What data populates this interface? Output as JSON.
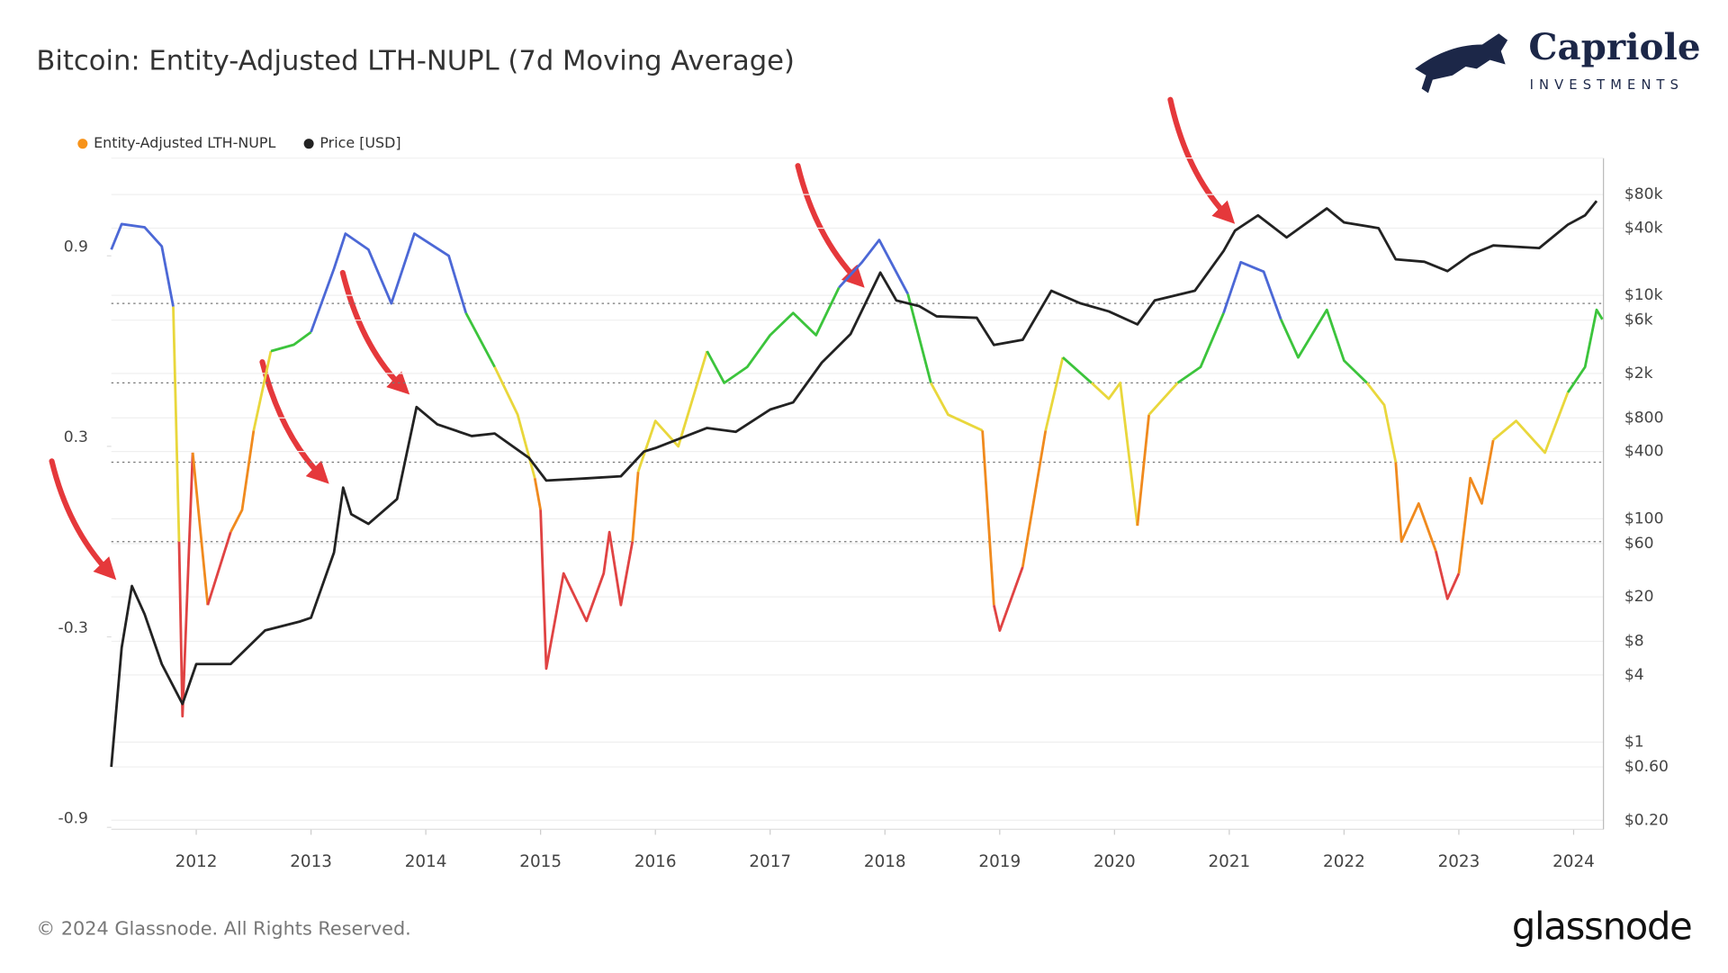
{
  "chart_data": {
    "type": "line",
    "title": "Bitcoin: Entity-Adjusted LTH-NUPL (7d Moving Average)",
    "brand": {
      "name": "Capriole",
      "tagline": "INVESTMENTS"
    },
    "footer": {
      "copyright": "© 2024 Glassnode. All Rights Reserved.",
      "source": "glassnode"
    },
    "xlim": [
      2011.26,
      2024.26
    ],
    "xticks": [
      2012,
      2013,
      2014,
      2015,
      2016,
      2017,
      2018,
      2019,
      2020,
      2021,
      2022,
      2023,
      2024
    ],
    "ylim": [
      -0.906,
      1.208
    ],
    "yticks": [
      0.9,
      0.3,
      -0.3,
      -0.9
    ],
    "y2lim": [
      0.166,
      169600
    ],
    "y2scale": "log",
    "y2ticks": [
      {
        "value": 80000,
        "label": "$80k"
      },
      {
        "value": 40000,
        "label": "$40k"
      },
      {
        "value": 10000,
        "label": "$10k"
      },
      {
        "value": 6000,
        "label": "$6k"
      },
      {
        "value": 2000,
        "label": "$2k"
      },
      {
        "value": 800,
        "label": "$800"
      },
      {
        "value": 400,
        "label": "$400"
      },
      {
        "value": 100,
        "label": "$100"
      },
      {
        "value": 60,
        "label": "$60"
      },
      {
        "value": 20,
        "label": "$20"
      },
      {
        "value": 8,
        "label": "$8"
      },
      {
        "value": 4,
        "label": "$4"
      },
      {
        "value": 1,
        "label": "$1"
      },
      {
        "value": 0.6,
        "label": "$0.60"
      },
      {
        "value": 0.2,
        "label": "$0.20"
      }
    ],
    "grid": true,
    "legend": "top-left",
    "zones": {
      "thresholds": [
        0,
        0.25,
        0.5,
        0.75
      ],
      "colors": [
        "#e04343",
        "#f08a1e",
        "#e9d73c",
        "#3cc43c",
        "#4c68d6"
      ]
    },
    "series": [
      {
        "name": "Entity-Adjusted LTH-NUPL",
        "color": "#f7931a",
        "axis": "y",
        "x": [
          2011.26,
          2011.35,
          2011.55,
          2011.7,
          2011.8,
          2011.85,
          2011.88,
          2011.97,
          2012.1,
          2012.3,
          2012.4,
          2012.5,
          2012.65,
          2012.85,
          2013.0,
          2013.2,
          2013.3,
          2013.5,
          2013.7,
          2013.9,
          2014.2,
          2014.35,
          2014.6,
          2014.8,
          2014.95,
          2015.0,
          2015.05,
          2015.2,
          2015.4,
          2015.55,
          2015.6,
          2015.7,
          2015.8,
          2015.85,
          2016.0,
          2016.2,
          2016.45,
          2016.6,
          2016.8,
          2017.0,
          2017.2,
          2017.4,
          2017.6,
          2017.8,
          2017.95,
          2018.2,
          2018.4,
          2018.55,
          2018.85,
          2018.95,
          2019.0,
          2019.2,
          2019.4,
          2019.55,
          2019.8,
          2019.95,
          2020.05,
          2020.2,
          2020.3,
          2020.55,
          2020.75,
          2020.95,
          2021.1,
          2021.3,
          2021.45,
          2021.6,
          2021.85,
          2022.0,
          2022.2,
          2022.35,
          2022.45,
          2022.5,
          2022.65,
          2022.8,
          2022.9,
          2023.0,
          2023.1,
          2023.2,
          2023.3,
          2023.5,
          2023.75,
          2023.95,
          2024.1,
          2024.2,
          2024.25
        ],
        "values": [
          0.92,
          1.0,
          0.99,
          0.93,
          0.74,
          0.0,
          -0.55,
          0.28,
          -0.2,
          0.03,
          0.1,
          0.35,
          0.6,
          0.62,
          0.66,
          0.86,
          0.97,
          0.92,
          0.75,
          0.97,
          0.9,
          0.72,
          0.55,
          0.4,
          0.2,
          0.1,
          -0.4,
          -0.1,
          -0.25,
          -0.1,
          0.03,
          -0.2,
          0.0,
          0.22,
          0.38,
          0.3,
          0.6,
          0.5,
          0.55,
          0.65,
          0.72,
          0.65,
          0.8,
          0.88,
          0.95,
          0.78,
          0.5,
          0.4,
          0.35,
          -0.2,
          -0.28,
          -0.08,
          0.35,
          0.58,
          0.5,
          0.45,
          0.5,
          0.05,
          0.4,
          0.5,
          0.55,
          0.72,
          0.88,
          0.85,
          0.7,
          0.58,
          0.73,
          0.57,
          0.5,
          0.43,
          0.25,
          0.0,
          0.12,
          -0.03,
          -0.18,
          -0.1,
          0.2,
          0.12,
          0.32,
          0.38,
          0.28,
          0.47,
          0.55,
          0.73,
          0.7
        ]
      },
      {
        "name": "Price [USD]",
        "color": "#222222",
        "axis": "y2",
        "x": [
          2011.26,
          2011.35,
          2011.44,
          2011.55,
          2011.7,
          2011.88,
          2012.0,
          2012.3,
          2012.6,
          2012.9,
          2013.0,
          2013.2,
          2013.28,
          2013.35,
          2013.5,
          2013.75,
          2013.92,
          2014.1,
          2014.4,
          2014.6,
          2014.9,
          2015.05,
          2015.4,
          2015.7,
          2015.9,
          2016.0,
          2016.45,
          2016.7,
          2017.0,
          2017.2,
          2017.45,
          2017.7,
          2017.96,
          2018.1,
          2018.3,
          2018.45,
          2018.8,
          2018.95,
          2019.2,
          2019.45,
          2019.7,
          2019.95,
          2020.2,
          2020.35,
          2020.7,
          2020.95,
          2021.05,
          2021.25,
          2021.5,
          2021.85,
          2022.0,
          2022.3,
          2022.45,
          2022.7,
          2022.9,
          2023.1,
          2023.3,
          2023.7,
          2023.95,
          2024.1,
          2024.2
        ],
        "values": [
          0.6,
          7,
          25,
          14,
          5,
          2.2,
          5,
          5,
          10,
          12,
          13,
          50,
          190,
          110,
          90,
          150,
          1000,
          700,
          550,
          580,
          350,
          220,
          230,
          240,
          400,
          430,
          650,
          600,
          950,
          1100,
          2500,
          4500,
          16000,
          9000,
          8000,
          6500,
          6300,
          3600,
          4000,
          11000,
          8500,
          7200,
          5500,
          9000,
          11000,
          25000,
          38000,
          52000,
          33000,
          60000,
          45000,
          40000,
          21000,
          20000,
          16500,
          23000,
          28000,
          26500,
          43000,
          52000,
          70000
        ]
      }
    ]
  }
}
